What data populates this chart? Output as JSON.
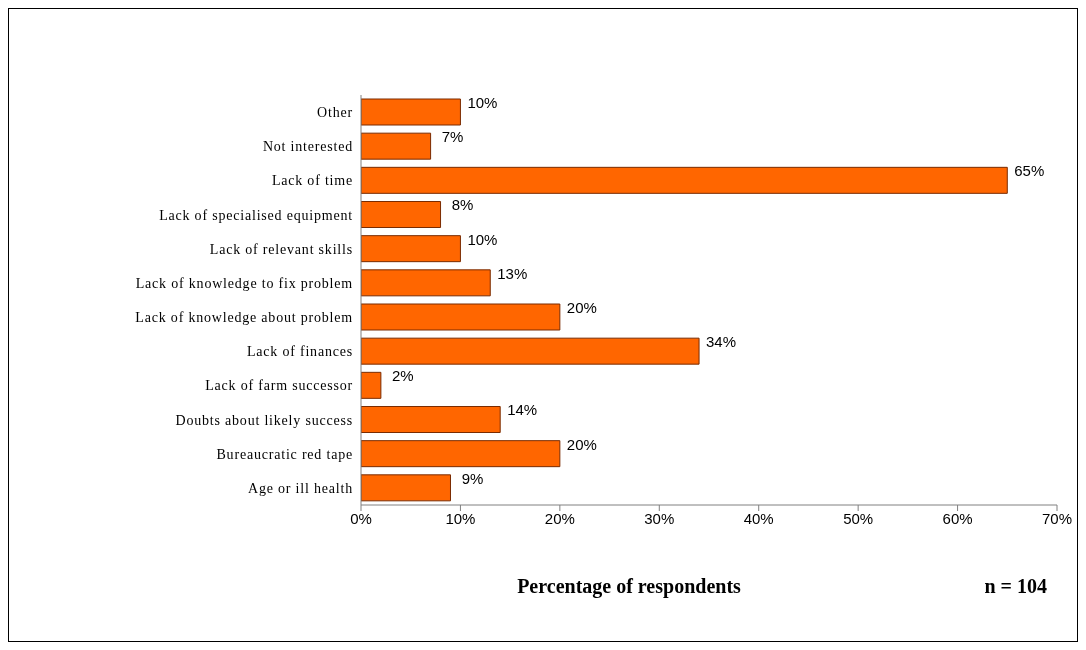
{
  "chart_data": {
    "type": "bar",
    "orientation": "horizontal",
    "xlabel": "Percentage of respondents",
    "annotations": [
      "n = 104"
    ],
    "categories": [
      "Other",
      "Not interested",
      "Lack of time",
      "Lack of specialised equipment",
      "Lack of relevant skills",
      "Lack of knowledge to fix problem",
      "Lack of knowledge about problem",
      "Lack of finances",
      "Lack of farm successor",
      "Doubts about likely success",
      "Bureaucratic red tape",
      "Age or ill health"
    ],
    "values": [
      10,
      7,
      65,
      8,
      10,
      13,
      20,
      34,
      2,
      14,
      20,
      9
    ],
    "value_labels": [
      "10%",
      "7%",
      "65%",
      "8%",
      "10%",
      "13%",
      "20%",
      "34%",
      "2%",
      "14%",
      "20%",
      "9%"
    ],
    "color": "#ff6600",
    "xlim": [
      0,
      70
    ],
    "xticks": [
      {
        "value": 0,
        "label": "0%"
      },
      {
        "value": 10,
        "label": "10%"
      },
      {
        "value": 20,
        "label": "20%"
      },
      {
        "value": 30,
        "label": "30%"
      },
      {
        "value": 40,
        "label": "40%"
      },
      {
        "value": 50,
        "label": "50%"
      },
      {
        "value": 60,
        "label": "60%"
      },
      {
        "value": 70,
        "label": "70%"
      }
    ],
    "grid": false,
    "legend": false
  }
}
